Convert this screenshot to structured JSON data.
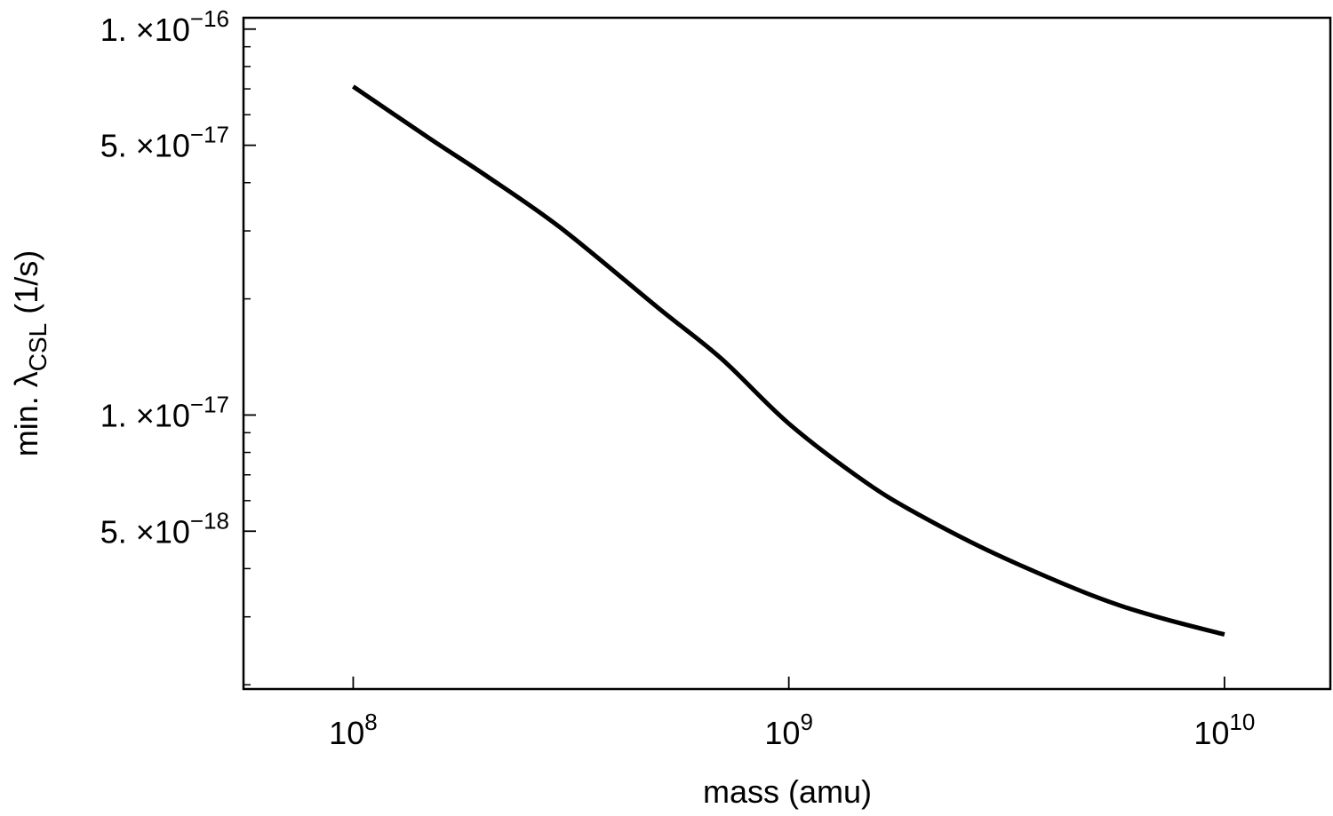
{
  "chart_data": {
    "type": "line",
    "xlabel": "mass (amu)",
    "ylabel": {
      "prefix": "min. λ",
      "subscript": "CSL",
      "suffix": " (1/s)"
    },
    "x_scale": "log",
    "y_scale": "log",
    "xlim": [
      56000000,
      17500000000
    ],
    "ylim": [
      1.95e-18,
      1.07e-16
    ],
    "x_ticks": [
      {
        "value": 100000000.0,
        "base": "10",
        "exp": "8"
      },
      {
        "value": 1000000000.0,
        "base": "10",
        "exp": "9"
      },
      {
        "value": 10000000000.0,
        "base": "10",
        "exp": "10"
      }
    ],
    "y_ticks": [
      {
        "value": 1e-16,
        "mant": "1.",
        "times": "×",
        "base": "10",
        "exp": "−16"
      },
      {
        "value": 5e-17,
        "mant": "5.",
        "times": "×",
        "base": "10",
        "exp": "−17"
      },
      {
        "value": 1e-17,
        "mant": "1.",
        "times": "×",
        "base": "10",
        "exp": "−17"
      },
      {
        "value": 5e-18,
        "mant": "5.",
        "times": "×",
        "base": "10",
        "exp": "−18"
      }
    ],
    "y_minor_ticks": [
      2e-18,
      3e-18,
      4e-18,
      6e-18,
      7e-18,
      8e-18,
      9e-18,
      2e-17,
      3e-17,
      4e-17,
      6e-17,
      7e-17,
      8e-17,
      9e-17
    ],
    "grid": false,
    "series": [
      {
        "color": "#000000",
        "x": [
          100000000.0,
          150000000.0,
          200000000.0,
          300000000.0,
          500000000.0,
          700000000.0,
          1000000000.0,
          1500000000.0,
          2000000000.0,
          3000000000.0,
          5000000000.0,
          7000000000.0,
          10000000000.0
        ],
        "y": [
          7.1e-17,
          5.2e-17,
          4.2e-17,
          3.05e-17,
          1.9e-17,
          1.4e-17,
          9.5e-18,
          6.7e-18,
          5.5e-18,
          4.35e-18,
          3.4e-18,
          3e-18,
          2.7e-18
        ]
      }
    ]
  }
}
